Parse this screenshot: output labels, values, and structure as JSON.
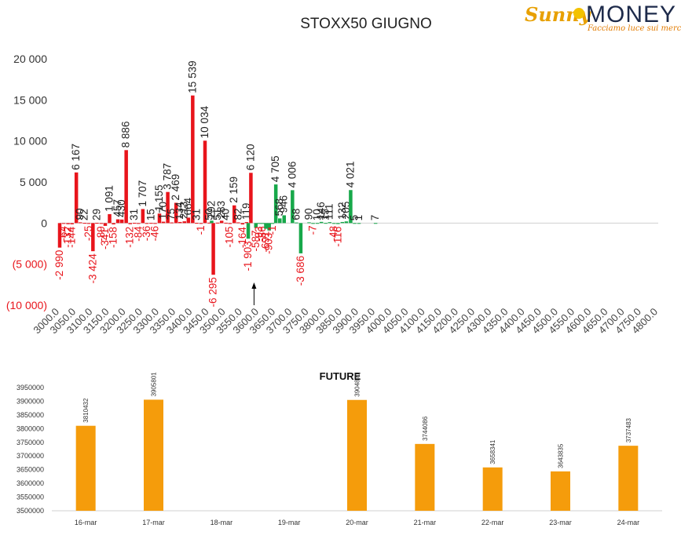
{
  "brand": {
    "word1": "Sunny",
    "word2": "MONEY",
    "tagline": "Facciamo luce sui mercati"
  },
  "colors": {
    "neg_put": "#e8141b",
    "pos_put": "#e8141b",
    "call": "#17a84a",
    "future": "#f59c0b",
    "tick": "#444444"
  },
  "chart_data": [
    {
      "type": "bar",
      "title": "STOXX50 GIUGNO",
      "ylim": [
        -10000,
        20000
      ],
      "yticks": [
        20000,
        15000,
        10000,
        5000,
        0,
        -5000,
        -10000
      ],
      "ytick_labels": [
        "20 000",
        "15 000",
        "10 000",
        "5 000",
        "0",
        "(5 000)",
        "(10 000)"
      ],
      "categories": [
        "3000.0",
        "3050.0",
        "3100.0",
        "3150.0",
        "3200.0",
        "3250.0",
        "3300.0",
        "3350.0",
        "3400.0",
        "3450.0",
        "3500.0",
        "3550.0",
        "3600.0",
        "3650.0",
        "3700.0",
        "3750.0",
        "3800.0",
        "3850.0",
        "3900.0",
        "3950.0",
        "4000.0",
        "4050.0",
        "4100.0",
        "4150.0",
        "4200.0",
        "4250.0",
        "4300.0",
        "4350.0",
        "4400.0",
        "4450.0",
        "4500.0",
        "4550.0",
        "4600.0",
        "4650.0",
        "4700.0",
        "4750.0",
        "4800.0"
      ],
      "series": [
        {
          "color": "#e8141b",
          "points": [
            {
              "x": 3000,
              "y": -2990,
              "label": "-2 990"
            },
            {
              "x": 3012,
              "y": -64,
              "label": "-64"
            },
            {
              "x": 3025,
              "y": -132,
              "label": "-132"
            },
            {
              "x": 3037,
              "y": -144,
              "label": "-144"
            },
            {
              "x": 3050,
              "y": 6167,
              "label": "6 167"
            },
            {
              "x": 3062,
              "y": 90,
              "label": "90"
            },
            {
              "x": 3075,
              "y": 22,
              "label": "22"
            },
            {
              "x": 3087,
              "y": -25,
              "label": "-25"
            },
            {
              "x": 3100,
              "y": -3424,
              "label": "-3 424"
            },
            {
              "x": 3112,
              "y": 29,
              "label": "29"
            },
            {
              "x": 3125,
              "y": -89,
              "label": "-89"
            },
            {
              "x": 3137,
              "y": -341,
              "label": "-341"
            },
            {
              "x": 3150,
              "y": 1091,
              "label": "1 091"
            },
            {
              "x": 3162,
              "y": -158,
              "label": "-158"
            },
            {
              "x": 3175,
              "y": 457,
              "label": "457"
            },
            {
              "x": 3187,
              "y": 430,
              "label": "430"
            },
            {
              "x": 3200,
              "y": 8886,
              "label": "8 886"
            },
            {
              "x": 3212,
              "y": -132,
              "label": "-132"
            },
            {
              "x": 3225,
              "y": 31,
              "label": "31"
            },
            {
              "x": 3237,
              "y": -84,
              "label": "-84"
            },
            {
              "x": 3250,
              "y": 1707,
              "label": "1 707"
            },
            {
              "x": 3262,
              "y": -36,
              "label": "-36"
            },
            {
              "x": 3275,
              "y": 15,
              "label": "15"
            },
            {
              "x": 3287,
              "y": -46,
              "label": "-46"
            },
            {
              "x": 3300,
              "y": 1155,
              "label": "1 155"
            },
            {
              "x": 3312,
              "y": 170,
              "label": "170"
            },
            {
              "x": 3325,
              "y": 3787,
              "label": "3 787"
            },
            {
              "x": 3337,
              "y": 75,
              "label": "75"
            },
            {
              "x": 3350,
              "y": 2469,
              "label": "2 469"
            },
            {
              "x": 3362,
              "y": 134,
              "label": "134"
            },
            {
              "x": 3375,
              "y": 213,
              "label": "213"
            },
            {
              "x": 3387,
              "y": 664,
              "label": "664"
            },
            {
              "x": 3400,
              "y": 15539,
              "label": "15 539"
            },
            {
              "x": 3412,
              "y": 31,
              "label": "31"
            },
            {
              "x": 3425,
              "y": -1,
              "label": "-1"
            },
            {
              "x": 3437,
              "y": 10034,
              "label": "10 034"
            },
            {
              "x": 3450,
              "y": 50,
              "label": "50"
            },
            {
              "x": 3462,
              "y": -6295,
              "label": "-6 295"
            },
            {
              "x": 3475,
              "y": 51,
              "label": "51"
            },
            {
              "x": 3487,
              "y": 283,
              "label": "283"
            },
            {
              "x": 3500,
              "y": 40,
              "label": "40"
            },
            {
              "x": 3512,
              "y": -105,
              "label": "-105"
            },
            {
              "x": 3525,
              "y": 2159,
              "label": "2 159"
            },
            {
              "x": 3537,
              "y": 82,
              "label": "82"
            },
            {
              "x": 3550,
              "y": -164,
              "label": "-164"
            },
            {
              "x": 3562,
              "y": 119,
              "label": "119"
            },
            {
              "x": 3575,
              "y": 6120,
              "label": "6 120"
            }
          ]
        },
        {
          "color": "#17a84a",
          "points": [
            {
              "x": 3457,
              "y": 292,
              "label": "292"
            },
            {
              "x": 3567,
              "y": -1903,
              "label": "-1 903"
            },
            {
              "x": 3590,
              "y": -587,
              "label": "-587"
            },
            {
              "x": 3600,
              "y": -93,
              "label": "-93"
            },
            {
              "x": 3610,
              "y": -86,
              "label": "-86"
            },
            {
              "x": 3620,
              "y": -691,
              "label": "-691"
            },
            {
              "x": 3630,
              "y": -903,
              "label": "-903"
            },
            {
              "x": 3640,
              "y": -1,
              "label": "-1"
            },
            {
              "x": 3650,
              "y": 4705,
              "label": "4 705"
            },
            {
              "x": 3662,
              "y": 568,
              "label": "568"
            },
            {
              "x": 3675,
              "y": 946,
              "label": "946"
            },
            {
              "x": 3700,
              "y": 4006,
              "label": "4 006"
            },
            {
              "x": 3712,
              "y": 68,
              "label": "68"
            },
            {
              "x": 3725,
              "y": -3686,
              "label": "-3 686"
            },
            {
              "x": 3750,
              "y": 90,
              "label": "90"
            },
            {
              "x": 3762,
              "y": -7,
              "label": "-7"
            },
            {
              "x": 3775,
              "y": 10,
              "label": "10"
            },
            {
              "x": 3787,
              "y": 146,
              "label": "146"
            },
            {
              "x": 3800,
              "y": 15,
              "label": "15"
            },
            {
              "x": 3812,
              "y": 111,
              "label": "111"
            },
            {
              "x": 3825,
              "y": -48,
              "label": "-48"
            },
            {
              "x": 3837,
              "y": -116,
              "label": "-116"
            },
            {
              "x": 3850,
              "y": 132,
              "label": "132"
            },
            {
              "x": 3862,
              "y": 205,
              "label": "205"
            },
            {
              "x": 3875,
              "y": 4021,
              "label": "4 021"
            },
            {
              "x": 3887,
              "y": 5,
              "label": "5"
            },
            {
              "x": 3900,
              "y": 1,
              "label": "1"
            },
            {
              "x": 3950,
              "y": 7,
              "label": "7"
            }
          ]
        }
      ]
    },
    {
      "type": "bar",
      "title": "FUTURE",
      "categories": [
        "16-mar",
        "17-mar",
        "18-mar",
        "19-mar",
        "20-mar",
        "21-mar",
        "22-mar",
        "23-mar",
        "24-mar"
      ],
      "values": [
        3810432,
        3905801,
        null,
        null,
        3904871,
        3744086,
        3658341,
        3643835,
        3737483
      ],
      "data_labels": [
        "3810432",
        "3905801",
        "",
        "",
        "3904871",
        "3744086",
        "3658341",
        "3643835",
        "3737483"
      ],
      "ylim": [
        3500000,
        3950000
      ],
      "ytick_labels": [
        "3950000",
        "3900000",
        "3850000",
        "3800000",
        "3750000",
        "3700000",
        "3650000",
        "3600000",
        "3550000",
        "3500000"
      ],
      "color": "#f59c0b"
    }
  ]
}
